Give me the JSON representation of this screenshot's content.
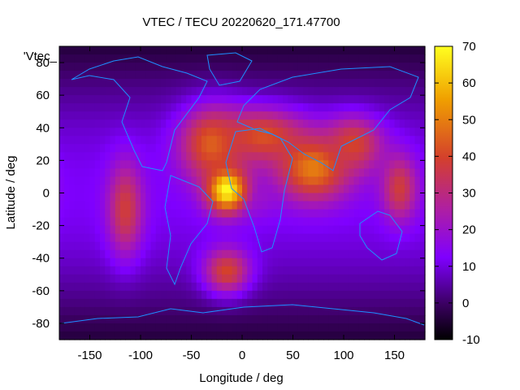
{
  "chart_data": {
    "type": "heatmap",
    "title": "VTEC / TECU 20220620_171.47700",
    "xlabel": "Longitude / deg",
    "ylabel": "Latitude / deg",
    "legend_label": "'Vtec_",
    "xlim": [
      -180,
      180
    ],
    "ylim": [
      -90,
      90
    ],
    "x_ticks": [
      -150,
      -100,
      -50,
      0,
      50,
      100,
      150
    ],
    "y_ticks": [
      -80,
      -60,
      -40,
      -20,
      0,
      20,
      40,
      60,
      80
    ],
    "colorbar": {
      "min": -10,
      "max": 70,
      "ticks": [
        -10,
        0,
        10,
        20,
        30,
        40,
        50,
        60,
        70
      ]
    },
    "grid": false,
    "features": [
      {
        "lon": -15,
        "lat": 2,
        "value": 70,
        "sigma_lon": 14,
        "sigma_lat": 10
      },
      {
        "lon": -30,
        "lat": 30,
        "value": 45,
        "sigma_lon": 22,
        "sigma_lat": 16
      },
      {
        "lon": 20,
        "lat": 35,
        "value": 42,
        "sigma_lon": 30,
        "sigma_lat": 12
      },
      {
        "lon": 70,
        "lat": 15,
        "value": 50,
        "sigma_lon": 25,
        "sigma_lat": 14
      },
      {
        "lon": 110,
        "lat": 30,
        "value": 40,
        "sigma_lon": 20,
        "sigma_lat": 12
      },
      {
        "lon": -115,
        "lat": -10,
        "value": 38,
        "sigma_lon": 12,
        "sigma_lat": 20
      },
      {
        "lon": -15,
        "lat": -48,
        "value": 40,
        "sigma_lon": 16,
        "sigma_lat": 10
      },
      {
        "lon": 155,
        "lat": 3,
        "value": 38,
        "sigma_lon": 12,
        "sigma_lat": 14
      },
      {
        "lon": 15,
        "lat": 0,
        "value": 20,
        "sigma_lon": 14,
        "sigma_lat": 10
      }
    ],
    "background": {
      "equator_value": 12,
      "polar_value": -4
    }
  },
  "colors": {
    "coastline": "#1e90ff",
    "colormap": [
      "#000000",
      "#3a0060",
      "#7f00ff",
      "#b0209f",
      "#d4402c",
      "#f0a000",
      "#ffff20"
    ]
  }
}
